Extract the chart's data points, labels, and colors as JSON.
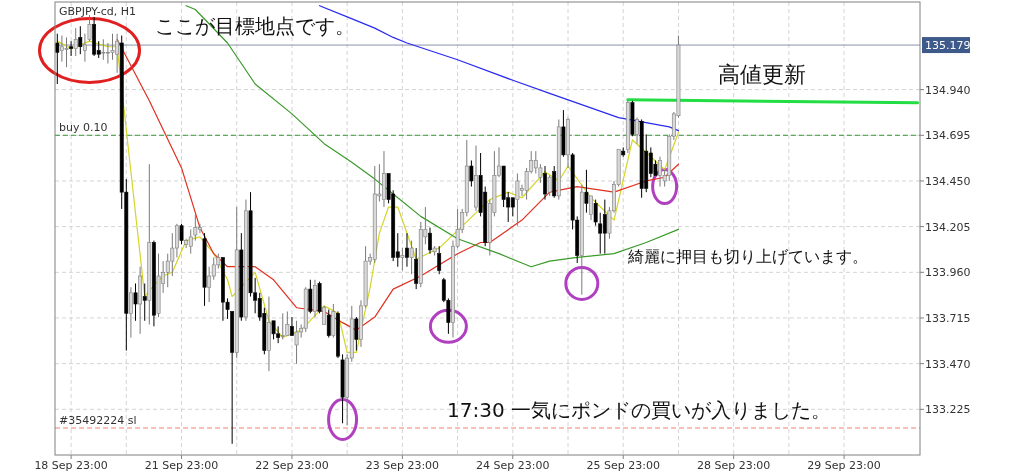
{
  "chart_data": {
    "type": "candlestick",
    "title": "GBPJPY-cd, H1",
    "annotations": [
      "ここが目標地点です。",
      "高値更新",
      "綺麗に押目も切り上げています。",
      "17:30 一気にポンドの買いが入りました。"
    ],
    "categories": [
      null,
      null,
      null,
      "18 Sep 23:00",
      null,
      null,
      null,
      null,
      null,
      null,
      null,
      null,
      null,
      null,
      null,
      null,
      null,
      null,
      null,
      null,
      null,
      null,
      null,
      null,
      null,
      null,
      null,
      "21 Sep 23:00",
      null,
      null,
      null,
      null,
      null,
      null,
      null,
      null,
      null,
      null,
      null,
      null,
      null,
      null,
      null,
      null,
      null,
      null,
      null,
      null,
      null,
      null,
      null,
      "22 Sep 23:00",
      null,
      null,
      null,
      null,
      null,
      null,
      null,
      null,
      null,
      null,
      null,
      null,
      null,
      null,
      null,
      null,
      null,
      null,
      null,
      null,
      null,
      null,
      null,
      "23 Sep 23:00",
      null,
      null,
      null,
      null,
      null,
      null,
      null,
      null,
      null,
      null,
      null,
      null,
      null,
      null,
      null,
      null,
      null,
      null,
      null,
      null,
      null,
      null,
      null,
      "24 Sep 23:00",
      null,
      null,
      null,
      null,
      null,
      null,
      null,
      null,
      null,
      null,
      null,
      null,
      null,
      null,
      null,
      null,
      null,
      null,
      null,
      null,
      null,
      null,
      null,
      "25 Sep 23:00",
      null,
      null,
      null,
      null,
      null,
      null,
      null,
      null,
      null,
      null,
      null,
      null,
      null,
      null,
      null,
      null,
      null,
      null,
      null,
      null,
      null,
      null,
      null,
      "28 Sep 23:00",
      null,
      null,
      null,
      null,
      null,
      null,
      null,
      null,
      null,
      null,
      null,
      null,
      null,
      null,
      null,
      null,
      null,
      null,
      null,
      null,
      null,
      null,
      null,
      "29 Sep 23:00",
      null,
      null,
      null,
      null,
      null,
      null,
      null,
      null,
      null,
      null,
      null,
      null,
      null,
      null,
      null,
      null
    ],
    "ohlc": [
      [
        135.19,
        135.24,
        134.97,
        135.14
      ],
      [
        135.15,
        135.23,
        135.09,
        135.17
      ],
      [
        135.16,
        135.22,
        135.06,
        135.16
      ],
      [
        135.17,
        135.2,
        135.12,
        135.16
      ],
      [
        135.16,
        135.27,
        135.12,
        135.21
      ],
      [
        135.22,
        135.28,
        135.13,
        135.17
      ],
      [
        135.15,
        135.24,
        135.09,
        135.18
      ],
      [
        135.21,
        135.34,
        135.2,
        135.29
      ],
      [
        135.29,
        135.33,
        135.12,
        135.13
      ],
      [
        135.15,
        135.2,
        135.11,
        135.13
      ],
      [
        135.14,
        135.21,
        135.1,
        135.14
      ],
      [
        135.14,
        135.19,
        135.08,
        135.14
      ],
      [
        135.14,
        135.24,
        135.1,
        135.15
      ],
      [
        135.13,
        135.24,
        135.03,
        135.2
      ],
      [
        135.19,
        135.23,
        134.3,
        134.39
      ],
      [
        134.39,
        134.46,
        133.54,
        133.74
      ],
      [
        133.74,
        133.88,
        133.61,
        133.85
      ],
      [
        133.85,
        133.9,
        133.7,
        133.79
      ],
      [
        133.79,
        133.99,
        133.63,
        133.94
      ],
      [
        133.83,
        133.9,
        133.7,
        133.81
      ],
      [
        133.81,
        134.54,
        133.68,
        134.12
      ],
      [
        134.12,
        134.13,
        133.67,
        133.73
      ],
      [
        133.74,
        134.06,
        133.72,
        133.94
      ],
      [
        133.9,
        134.02,
        133.85,
        133.96
      ],
      [
        133.96,
        134.06,
        133.88,
        134.02
      ],
      [
        134.02,
        134.17,
        133.94,
        134.09
      ],
      [
        134.09,
        134.22,
        134.04,
        134.21
      ],
      [
        134.21,
        134.22,
        134.11,
        134.13
      ],
      [
        134.11,
        134.14,
        134.09,
        134.13
      ],
      [
        134.1,
        134.19,
        134.06,
        134.15
      ],
      [
        134.16,
        134.27,
        134.13,
        134.2
      ],
      [
        134.19,
        134.22,
        134.17,
        134.2
      ],
      [
        134.14,
        134.17,
        133.78,
        133.88
      ],
      [
        133.88,
        133.99,
        133.8,
        133.94
      ],
      [
        133.94,
        134.04,
        133.92,
        134.0
      ],
      [
        134.0,
        134.06,
        133.98,
        134.04
      ],
      [
        134.04,
        134.04,
        133.7,
        133.8
      ],
      [
        133.8,
        133.82,
        133.71,
        133.76
      ],
      [
        133.75,
        133.75,
        133.04,
        133.53
      ],
      [
        133.53,
        134.31,
        133.5,
        134.08
      ],
      [
        134.08,
        134.17,
        133.7,
        133.72
      ],
      [
        133.72,
        134.35,
        133.7,
        134.29
      ],
      [
        134.29,
        134.39,
        133.83,
        133.85
      ],
      [
        133.85,
        133.93,
        133.74,
        133.81
      ],
      [
        133.82,
        133.85,
        133.7,
        133.72
      ],
      [
        133.74,
        133.77,
        133.52,
        133.54
      ],
      [
        133.54,
        133.83,
        133.43,
        133.69
      ],
      [
        133.7,
        133.7,
        133.6,
        133.63
      ],
      [
        133.63,
        133.67,
        133.58,
        133.61
      ],
      [
        133.62,
        133.74,
        133.6,
        133.62
      ],
      [
        133.62,
        133.75,
        133.62,
        133.68
      ],
      [
        133.67,
        133.72,
        133.62,
        133.62
      ],
      [
        133.57,
        133.7,
        133.47,
        133.64
      ],
      [
        133.64,
        133.68,
        133.61,
        133.66
      ],
      [
        133.66,
        133.88,
        133.64,
        133.87
      ],
      [
        133.87,
        133.92,
        133.74,
        133.75
      ],
      [
        133.75,
        133.92,
        133.72,
        133.89
      ],
      [
        133.9,
        133.91,
        133.74,
        133.75
      ],
      [
        133.68,
        133.78,
        133.68,
        133.77
      ],
      [
        133.73,
        133.76,
        133.61,
        133.62
      ],
      [
        133.62,
        133.79,
        133.61,
        133.75
      ],
      [
        133.74,
        133.75,
        133.5,
        133.51
      ],
      [
        133.49,
        133.52,
        133.15,
        133.29
      ],
      [
        133.29,
        133.52,
        133.14,
        133.5
      ],
      [
        133.5,
        133.78,
        133.48,
        133.71
      ],
      [
        133.71,
        133.72,
        133.54,
        133.6
      ],
      [
        133.6,
        133.81,
        133.56,
        133.78
      ],
      [
        133.78,
        134.1,
        133.77,
        134.02
      ],
      [
        134.02,
        134.06,
        134.0,
        134.04
      ],
      [
        134.03,
        134.53,
        134.01,
        134.38
      ],
      [
        134.37,
        134.54,
        134.34,
        134.38
      ],
      [
        134.35,
        134.61,
        134.31,
        134.49
      ],
      [
        134.49,
        134.49,
        134.33,
        134.35
      ],
      [
        134.38,
        134.4,
        134.02,
        134.04
      ],
      [
        134.07,
        134.17,
        133.99,
        134.04
      ],
      [
        134.04,
        134.09,
        133.97,
        134.05
      ],
      [
        134.09,
        134.17,
        133.99,
        134.04
      ],
      [
        134.04,
        134.13,
        133.95,
        134.09
      ],
      [
        134.03,
        134.09,
        133.87,
        133.9
      ],
      [
        133.9,
        134.23,
        133.88,
        134.19
      ],
      [
        134.15,
        134.31,
        134.11,
        134.19
      ],
      [
        134.17,
        134.2,
        134.06,
        134.08
      ],
      [
        134.07,
        134.1,
        134.05,
        134.09
      ],
      [
        134.06,
        134.1,
        133.95,
        133.97
      ],
      [
        133.92,
        133.93,
        133.8,
        133.81
      ],
      [
        133.81,
        133.82,
        133.63,
        133.69
      ],
      [
        133.69,
        134.13,
        133.61,
        134.1
      ],
      [
        134.1,
        134.3,
        134.09,
        134.19
      ],
      [
        134.19,
        134.3,
        134.17,
        134.28
      ],
      [
        134.28,
        134.67,
        134.26,
        134.53
      ],
      [
        134.53,
        134.56,
        134.42,
        134.45
      ],
      [
        134.31,
        134.64,
        134.29,
        134.48
      ],
      [
        134.48,
        134.6,
        134.26,
        134.28
      ],
      [
        134.39,
        134.42,
        134.1,
        134.12
      ],
      [
        134.12,
        134.35,
        134.05,
        134.33
      ],
      [
        134.28,
        134.61,
        134.26,
        134.48
      ],
      [
        134.48,
        134.63,
        134.47,
        134.53
      ],
      [
        134.53,
        134.53,
        134.31,
        134.35
      ],
      [
        134.36,
        134.39,
        134.23,
        134.31
      ],
      [
        134.36,
        134.36,
        134.26,
        134.31
      ],
      [
        134.35,
        134.49,
        134.21,
        134.45
      ],
      [
        134.4,
        134.43,
        134.37,
        134.41
      ],
      [
        134.4,
        134.52,
        134.35,
        134.5
      ],
      [
        134.5,
        134.61,
        134.49,
        134.56
      ],
      [
        134.52,
        134.61,
        134.49,
        134.56
      ],
      [
        134.47,
        134.54,
        134.44,
        134.52
      ],
      [
        134.49,
        134.53,
        134.35,
        134.38
      ],
      [
        134.39,
        134.48,
        134.37,
        134.47
      ],
      [
        134.5,
        134.53,
        134.36,
        134.37
      ],
      [
        134.37,
        134.78,
        134.35,
        134.74
      ],
      [
        134.74,
        134.83,
        134.58,
        134.59
      ],
      [
        134.59,
        134.79,
        134.52,
        134.78
      ],
      [
        134.59,
        134.6,
        134.19,
        134.24
      ],
      [
        134.24,
        134.26,
        134.01,
        134.05
      ],
      [
        134.05,
        134.43,
        133.84,
        134.39
      ],
      [
        134.39,
        134.51,
        134.28,
        134.33
      ],
      [
        134.27,
        134.37,
        134.24,
        134.37
      ],
      [
        134.33,
        134.35,
        134.21,
        134.23
      ],
      [
        134.22,
        134.28,
        134.06,
        134.17
      ],
      [
        134.27,
        134.35,
        134.06,
        134.17
      ],
      [
        134.17,
        134.31,
        134.14,
        134.29
      ],
      [
        134.29,
        134.45,
        134.28,
        134.43
      ],
      [
        134.43,
        134.62,
        134.42,
        134.62
      ],
      [
        134.61,
        134.63,
        134.58,
        134.59
      ],
      [
        134.62,
        134.88,
        134.6,
        134.87
      ],
      [
        134.87,
        134.88,
        134.69,
        134.7
      ],
      [
        134.7,
        134.79,
        134.65,
        134.78
      ],
      [
        134.77,
        134.78,
        134.36,
        134.41
      ],
      [
        134.61,
        134.7,
        134.39,
        134.41
      ],
      [
        134.6,
        134.63,
        134.47,
        134.49
      ],
      [
        134.54,
        134.56,
        134.48,
        134.48
      ],
      [
        134.48,
        134.58,
        134.42,
        134.56
      ],
      [
        134.45,
        134.51,
        134.42,
        134.48
      ],
      [
        134.48,
        134.7,
        134.45,
        134.69
      ],
      [
        134.69,
        134.82,
        134.67,
        134.81
      ],
      [
        134.8,
        135.23,
        134.79,
        135.179
      ],
      null,
      null,
      null,
      null,
      null,
      null,
      null,
      null,
      null,
      null,
      null,
      null,
      null,
      null,
      null,
      null,
      null,
      null,
      null,
      null,
      null,
      null,
      null,
      null,
      null,
      null,
      null,
      null,
      null,
      null,
      null,
      null,
      null,
      null,
      null,
      null,
      null,
      null,
      null,
      null,
      null,
      null,
      null,
      null,
      null,
      null,
      null,
      null,
      null,
      null,
      null,
      null
    ],
    "series": [
      {
        "type": "line",
        "color": "#d4d42a",
        "values": [
          135.2,
          null,
          null,
          135.16,
          null,
          null,
          null,
          135.2,
          null,
          null,
          null,
          135.17,
          null,
          135.17,
          null,
          null,
          null,
          null,
          null,
          133.83,
          null,
          133.89,
          null,
          133.94,
          null,
          133.96,
          null,
          null,
          134.13,
          null,
          null,
          134.15,
          null,
          null,
          134.06,
          null,
          null,
          133.92,
          133.83,
          null,
          null,
          null,
          null,
          133.96,
          null,
          null,
          133.7,
          null,
          null,
          133.61,
          null,
          null,
          null,
          133.65,
          null,
          null,
          null,
          null,
          133.78,
          null,
          null,
          133.74,
          null,
          133.53,
          null,
          133.53,
          null,
          null,
          133.88,
          null,
          134.17,
          null,
          134.31,
          null,
          134.31,
          null,
          null,
          null,
          134.03,
          null,
          null,
          null,
          null,
          134.09,
          null,
          null,
          null,
          null,
          null,
          null,
          null,
          null,
          null,
          null,
          134.35,
          null,
          null,
          null,
          134.39,
          null,
          null,
          134.36,
          null,
          null,
          null,
          null,
          134.5,
          null,
          null,
          134.45,
          null,
          134.53,
          null,
          null,
          null,
          null,
          134.36,
          null,
          null,
          null,
          null,
          134.24,
          null,
          null,
          null,
          134.67,
          null,
          null,
          null,
          134.58,
          null,
          null,
          134.51,
          null,
          null,
          134.71,
          null,
          null,
          null,
          null,
          null,
          null,
          null,
          null,
          null,
          null,
          null,
          null,
          null,
          null,
          null,
          null,
          null,
          null,
          null,
          null,
          null,
          null,
          null,
          null,
          null,
          null,
          null,
          null,
          null,
          null,
          null,
          null,
          null,
          null,
          null,
          null,
          null,
          null,
          null,
          null,
          null,
          null,
          null,
          null,
          null,
          null,
          null,
          null,
          null,
          null,
          null,
          null
        ]
      },
      {
        "type": "line",
        "color": "#e03020",
        "values": [
          null,
          null,
          null,
          null,
          null,
          null,
          null,
          null,
          null,
          null,
          null,
          null,
          null,
          135.21,
          null,
          null,
          null,
          null,
          null,
          null,
          134.88,
          null,
          null,
          null,
          null,
          null,
          null,
          134.52,
          null,
          null,
          null,
          134.2,
          null,
          null,
          134.06,
          null,
          null,
          133.99,
          null,
          null,
          null,
          null,
          null,
          133.99,
          null,
          null,
          null,
          133.92,
          null,
          null,
          null,
          null,
          133.77,
          null,
          null,
          null,
          null,
          null,
          133.75,
          null,
          null,
          null,
          133.69,
          null,
          null,
          133.65,
          null,
          null,
          null,
          133.72,
          null,
          null,
          null,
          133.87,
          null,
          null,
          null,
          null,
          null,
          133.94,
          null,
          null,
          null,
          null,
          null,
          null,
          null,
          134.06,
          null,
          null,
          null,
          null,
          134.12,
          null,
          134.12,
          null,
          null,
          null,
          null,
          null,
          null,
          134.24,
          null,
          null,
          null,
          null,
          null,
          134.39,
          null,
          null,
          null,
          null,
          null,
          134.42,
          null,
          null,
          null,
          null,
          null,
          null,
          null,
          134.39,
          null,
          null,
          null,
          null,
          null,
          null,
          134.45,
          null,
          null,
          null,
          134.47,
          null,
          null,
          134.54,
          null,
          null,
          null,
          null,
          null,
          null,
          null,
          null,
          null,
          null,
          null,
          null,
          null,
          null,
          null,
          null,
          null,
          null,
          null,
          null,
          null,
          null,
          null,
          null,
          null,
          null,
          null,
          null,
          null,
          null,
          null,
          null,
          null,
          null,
          null,
          null,
          null,
          null,
          null,
          null,
          null,
          null,
          null,
          null,
          null,
          null,
          null,
          null,
          null,
          null,
          null,
          null
        ]
      },
      {
        "type": "line",
        "color": "#3a9a2a",
        "values": [
          null,
          null,
          null,
          null,
          null,
          null,
          null,
          null,
          null,
          null,
          null,
          null,
          null,
          null,
          null,
          null,
          null,
          null,
          null,
          null,
          null,
          null,
          null,
          null,
          null,
          null,
          null,
          null,
          135.39,
          null,
          135.37,
          null,
          null,
          null,
          null,
          null,
          null,
          135.19,
          null,
          null,
          null,
          null,
          null,
          134.97,
          null,
          null,
          null,
          null,
          null,
          null,
          null,
          134.81,
          null,
          null,
          null,
          null,
          null,
          null,
          134.65,
          null,
          null,
          null,
          null,
          null,
          134.55,
          null,
          null,
          null,
          null,
          134.46,
          null,
          null,
          null,
          134.38,
          null,
          null,
          null,
          null,
          null,
          134.26,
          null,
          null,
          null,
          null,
          null,
          null,
          null,
          134.14,
          null,
          null,
          null,
          null,
          null,
          null,
          null,
          null,
          134.06,
          null,
          null,
          null,
          null,
          null,
          null,
          133.99,
          null,
          null,
          null,
          134.02,
          null,
          null,
          null,
          null,
          null,
          134.04,
          null,
          null,
          null,
          null,
          null,
          null,
          null,
          134.06,
          null,
          null,
          null,
          null,
          null,
          null,
          134.12,
          null,
          null,
          null,
          null,
          null,
          null,
          134.19,
          null,
          null,
          null,
          null,
          null,
          null,
          null,
          null,
          null,
          null,
          null,
          null,
          null,
          null,
          null,
          null,
          null,
          null,
          null,
          null,
          null,
          null,
          null,
          null,
          null,
          null,
          null,
          null,
          null,
          null,
          null,
          null,
          null,
          null,
          null,
          null,
          null,
          null,
          null,
          null,
          null,
          null,
          null,
          null,
          null,
          null,
          null,
          null,
          null,
          null,
          null,
          null
        ]
      },
      {
        "type": "line",
        "color": "#2a2af0",
        "values": [
          null,
          null,
          null,
          null,
          null,
          null,
          null,
          null,
          null,
          null,
          null,
          null,
          null,
          null,
          null,
          null,
          null,
          null,
          null,
          null,
          null,
          null,
          null,
          null,
          null,
          null,
          null,
          null,
          null,
          null,
          null,
          null,
          null,
          null,
          null,
          null,
          null,
          null,
          null,
          null,
          null,
          null,
          null,
          null,
          null,
          null,
          null,
          null,
          null,
          null,
          null,
          null,
          null,
          null,
          null,
          null,
          null,
          135.39,
          null,
          null,
          null,
          null,
          null,
          135.33,
          null,
          null,
          null,
          null,
          null,
          135.27,
          null,
          null,
          null,
          135.22,
          null,
          null,
          135.19,
          null,
          null,
          null,
          null,
          null,
          null,
          null,
          null,
          null,
          null,
          135.1,
          null,
          null,
          null,
          null,
          null,
          null,
          null,
          null,
          null,
          null,
          null,
          134.99,
          null,
          null,
          null,
          null,
          null,
          null,
          null,
          134.92,
          null,
          null,
          null,
          null,
          null,
          null,
          null,
          null,
          null,
          null,
          null,
          null,
          null,
          null,
          134.79,
          null,
          null,
          null,
          null,
          null,
          null,
          null,
          null,
          null,
          null,
          134.74,
          null,
          134.72,
          null,
          null,
          null,
          null,
          null,
          null,
          null,
          null,
          null,
          null,
          null,
          null,
          null,
          null,
          null,
          null,
          null,
          null,
          null,
          null,
          null,
          null,
          null,
          null,
          null,
          null,
          null,
          null,
          null,
          null,
          null,
          null,
          null,
          null,
          null,
          null,
          null,
          null,
          null,
          null,
          null,
          null,
          null,
          null,
          null,
          null,
          null,
          null,
          null,
          null,
          null,
          null
        ]
      },
      {
        "type": "line",
        "color": "#22dd44",
        "values": [
          null,
          null,
          null,
          null,
          null,
          null,
          null,
          null,
          null,
          null,
          null,
          null,
          null,
          null,
          null,
          null,
          null,
          null,
          null,
          null,
          null,
          null,
          null,
          null,
          null,
          null,
          null,
          null,
          null,
          null,
          null,
          null,
          null,
          null,
          null,
          null,
          null,
          null,
          null,
          null,
          null,
          null,
          null,
          null,
          null,
          null,
          null,
          null,
          null,
          null,
          null,
          null,
          null,
          null,
          null,
          null,
          null,
          null,
          null,
          null,
          null,
          null,
          null,
          null,
          null,
          null,
          null,
          null,
          null,
          null,
          null,
          null,
          null,
          null,
          null,
          null,
          null,
          null,
          null,
          null,
          null,
          null,
          null,
          null,
          null,
          null,
          null,
          null,
          null,
          null,
          null,
          null,
          null,
          null,
          null,
          null,
          null,
          null,
          null,
          null,
          null,
          null,
          null,
          null,
          null,
          null,
          null,
          null,
          null,
          null,
          null,
          null,
          null,
          null,
          null,
          null,
          null,
          null,
          null,
          null,
          null,
          null,
          null,
          null,
          134.885,
          null,
          null,
          null,
          null,
          null,
          null,
          null,
          null,
          null,
          null,
          null,
          null,
          null,
          null,
          null,
          null,
          null,
          null,
          null,
          null,
          null,
          null,
          null,
          null,
          null,
          null,
          null,
          null,
          null,
          null,
          null,
          null,
          null,
          null,
          null,
          null,
          null,
          null,
          null,
          null,
          null,
          null,
          null,
          null,
          null,
          null,
          null,
          null,
          null,
          null,
          null,
          null,
          null,
          null,
          null,
          null,
          null,
          null,
          null,
          null,
          null,
          null,
          134.869
        ]
      }
    ],
    "ylim": [
      132.98,
      135.41
    ],
    "yticks": [
      {
        "value": 133.225,
        "label": "133.225"
      },
      {
        "value": 133.47,
        "label": "133.470"
      },
      {
        "value": 133.715,
        "label": "133.715"
      },
      {
        "value": 133.96,
        "label": "133.960"
      },
      {
        "value": 134.205,
        "label": "134.205"
      },
      {
        "value": 134.45,
        "label": "134.450"
      },
      {
        "value": 134.695,
        "label": "134.695"
      },
      {
        "value": 134.94,
        "label": "134.940"
      }
    ],
    "ref_lines": [
      {
        "axis": "y",
        "value": 135.179,
        "label": "135.179",
        "color": "#8a94aa",
        "line_style": "solid"
      },
      {
        "axis": "y",
        "value": 134.695,
        "label": "buy 0.10",
        "color": "#3a9a3a",
        "line_style": "dashed"
      },
      {
        "axis": "y",
        "value": 133.125,
        "label": "#35492224 sl",
        "color": "#f08070",
        "line_style": "dashed"
      }
    ],
    "grid": true
  }
}
